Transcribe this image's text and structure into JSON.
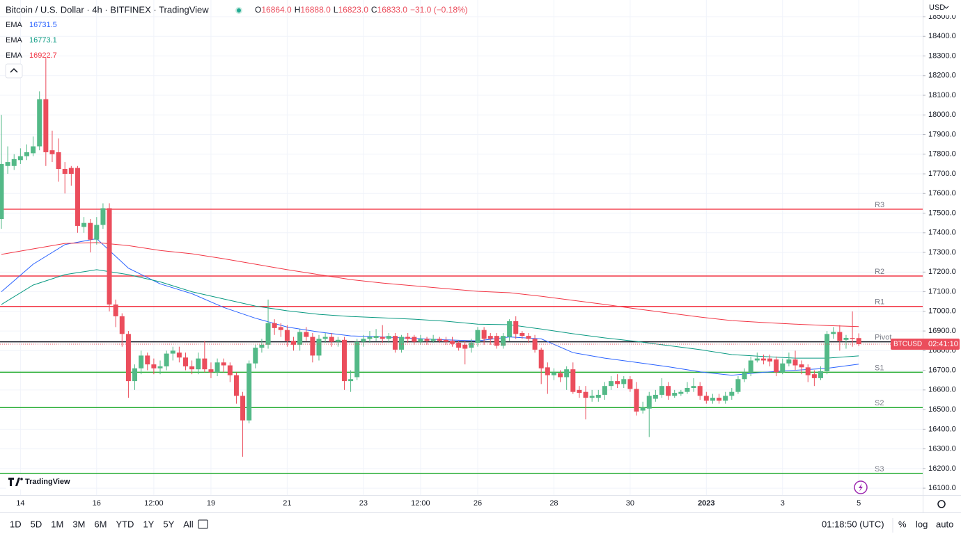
{
  "header": {
    "symbol": "Bitcoin / U.S. Dollar · 4h · BITFINEX · TradingView",
    "ohlc": [
      {
        "label": "O",
        "value": "16864.0"
      },
      {
        "label": "H",
        "value": "16888.0"
      },
      {
        "label": "L",
        "value": "16823.0"
      },
      {
        "label": "C",
        "value": "16833.0"
      }
    ],
    "change": "−31.0 (−0.18%)"
  },
  "chart_data": {
    "type": "candlestick",
    "categories": [
      null,
      null,
      null,
      "14",
      null,
      null,
      null,
      null,
      null,
      null,
      null,
      null,
      null,
      null,
      null,
      "16",
      null,
      null,
      null,
      null,
      null,
      null,
      null,
      null,
      "12:00",
      null,
      null,
      null,
      null,
      null,
      null,
      null,
      null,
      "19",
      null,
      null,
      null,
      null,
      null,
      null,
      null,
      null,
      null,
      null,
      null,
      "21",
      null,
      null,
      null,
      null,
      null,
      null,
      null,
      null,
      null,
      null,
      null,
      "23",
      null,
      null,
      null,
      null,
      null,
      null,
      null,
      null,
      "12:00",
      null,
      null,
      null,
      null,
      null,
      null,
      null,
      null,
      "26",
      null,
      null,
      null,
      null,
      null,
      null,
      null,
      null,
      null,
      null,
      null,
      "28",
      null,
      null,
      null,
      null,
      null,
      null,
      null,
      null,
      null,
      null,
      null,
      "30",
      null,
      null,
      null,
      null,
      null,
      null,
      null,
      null,
      null,
      null,
      null,
      "2023",
      null,
      null,
      null,
      null,
      null,
      null,
      null,
      null,
      null,
      null,
      null,
      "3",
      null,
      null,
      null,
      null,
      null,
      null,
      null,
      null,
      null,
      null,
      null,
      "5"
    ],
    "open": [
      17470,
      17740,
      17740,
      17770,
      17790,
      17805,
      17840,
      18080,
      17820,
      17810,
      17725,
      17730,
      17730,
      17430,
      17450,
      17365,
      17440,
      17525,
      17035,
      16975,
      16885,
      16645,
      16710,
      16775,
      16730,
      16710,
      16720,
      16785,
      16790,
      16765,
      16720,
      16705,
      16760,
      16705,
      16690,
      16740,
      16725,
      16675,
      16570,
      16445,
      16735,
      16815,
      16830,
      16940,
      16920,
      16905,
      16850,
      16830,
      16895,
      16870,
      16775,
      16860,
      16870,
      16845,
      16855,
      16645,
      16665,
      16845,
      16860,
      16865,
      16870,
      16860,
      16875,
      16805,
      16870,
      16870,
      16845,
      16860,
      16850,
      16860,
      16855,
      16850,
      16840,
      16830,
      16815,
      16840,
      16905,
      16875,
      16875,
      16825,
      16870,
      16950,
      16890,
      16875,
      16860,
      16805,
      16715,
      16675,
      16685,
      16665,
      16705,
      16600,
      16590,
      16560,
      16560,
      16575,
      16620,
      16645,
      16630,
      16655,
      16605,
      16495,
      16505,
      16555,
      16575,
      16620,
      16570,
      16580,
      16590,
      16610,
      16620,
      16570,
      16545,
      16560,
      16545,
      16570,
      16590,
      16655,
      16690,
      16750,
      16760,
      16760,
      16755,
      16690,
      16735,
      16755,
      16730,
      16715,
      16680,
      16660,
      16695,
      16885,
      16895,
      16855,
      16865,
      16864
    ],
    "high": [
      18000,
      17840,
      17800,
      17830,
      17850,
      17890,
      18120,
      18290,
      17920,
      17880,
      17760,
      17740,
      17740,
      17480,
      17470,
      17480,
      17550,
      17550,
      17060,
      16990,
      16900,
      16730,
      16800,
      16790,
      16760,
      16750,
      16800,
      16820,
      16820,
      16790,
      16750,
      16790,
      16850,
      16740,
      16760,
      16760,
      16740,
      16690,
      16590,
      16750,
      16830,
      16860,
      17060,
      16960,
      16940,
      16930,
      16870,
      16910,
      16920,
      16890,
      16880,
      16890,
      16890,
      16870,
      16870,
      16700,
      16860,
      16880,
      16900,
      16910,
      16930,
      16890,
      16890,
      16880,
      16890,
      16880,
      16880,
      16870,
      16880,
      16870,
      16870,
      16870,
      16850,
      16850,
      16860,
      16920,
      16920,
      16890,
      16890,
      16890,
      16960,
      16975,
      16900,
      16890,
      16880,
      16815,
      16740,
      16710,
      16700,
      16720,
      16740,
      16620,
      16620,
      16600,
      16600,
      16640,
      16670,
      16680,
      16670,
      16670,
      16640,
      16540,
      16590,
      16600,
      16660,
      16640,
      16600,
      16600,
      16640,
      16660,
      16640,
      16590,
      16580,
      16580,
      16590,
      16610,
      16670,
      16710,
      16770,
      16790,
      16780,
      16780,
      16770,
      16760,
      16790,
      16800,
      16750,
      16730,
      16700,
      16720,
      16900,
      16920,
      16930,
      16880,
      17000,
      16888
    ],
    "low": [
      17420,
      17700,
      17720,
      17750,
      17770,
      17790,
      17820,
      17740,
      17760,
      17660,
      17600,
      17640,
      17400,
      17400,
      17300,
      17340,
      17420,
      17000,
      16920,
      16820,
      16560,
      16600,
      16680,
      16700,
      16680,
      16680,
      16700,
      16750,
      16740,
      16700,
      16680,
      16680,
      16690,
      16660,
      16670,
      16690,
      16640,
      16530,
      16260,
      16430,
      16710,
      16790,
      16810,
      16880,
      16870,
      16820,
      16800,
      16800,
      16850,
      16740,
      16750,
      16840,
      16820,
      16820,
      16600,
      16590,
      16650,
      16820,
      16840,
      16850,
      16840,
      16840,
      16790,
      16790,
      16840,
      16830,
      16830,
      16830,
      16840,
      16840,
      16830,
      16820,
      16800,
      16730,
      16790,
      16820,
      16830,
      16830,
      16810,
      16810,
      16850,
      16860,
      16860,
      16840,
      16790,
      16630,
      16580,
      16650,
      16640,
      16600,
      16580,
      16560,
      16450,
      16540,
      16540,
      16550,
      16600,
      16610,
      16610,
      16590,
      16470,
      16480,
      16360,
      16540,
      16560,
      16550,
      16560,
      16570,
      16580,
      16590,
      16550,
      16530,
      16530,
      16530,
      16530,
      16550,
      16580,
      16640,
      16670,
      16740,
      16730,
      16720,
      16670,
      16680,
      16720,
      16700,
      16680,
      16640,
      16620,
      16650,
      16680,
      16860,
      16800,
      16810,
      16820,
      16823
    ],
    "close": [
      17750,
      17760,
      17775,
      17790,
      17810,
      17840,
      18080,
      17810,
      17800,
      17725,
      17700,
      17700,
      17435,
      17450,
      17365,
      17440,
      17525,
      17035,
      16975,
      16885,
      16645,
      16710,
      16775,
      16730,
      16710,
      16720,
      16785,
      16800,
      16765,
      16720,
      16705,
      16760,
      16705,
      16690,
      16740,
      16725,
      16675,
      16570,
      16445,
      16735,
      16815,
      16830,
      16940,
      16915,
      16905,
      16850,
      16830,
      16895,
      16870,
      16775,
      16860,
      16870,
      16845,
      16855,
      16645,
      16655,
      16845,
      16860,
      16870,
      16875,
      16860,
      16875,
      16805,
      16870,
      16860,
      16845,
      16860,
      16850,
      16860,
      16850,
      16845,
      16835,
      16815,
      16810,
      16840,
      16905,
      16860,
      16860,
      16825,
      16875,
      16950,
      16885,
      16875,
      16860,
      16805,
      16710,
      16675,
      16690,
      16665,
      16705,
      16590,
      16585,
      16560,
      16570,
      16575,
      16620,
      16645,
      16630,
      16655,
      16605,
      16490,
      16510,
      16570,
      16575,
      16620,
      16570,
      16585,
      16590,
      16610,
      16620,
      16570,
      16545,
      16560,
      16545,
      16570,
      16590,
      16655,
      16690,
      16750,
      16760,
      16750,
      16745,
      16690,
      16735,
      16755,
      16725,
      16715,
      16675,
      16660,
      16695,
      16885,
      16895,
      16850,
      16865,
      16860,
      16833
    ],
    "up_color": "#53b987",
    "down_color": "#eb4d5c",
    "ylim": [
      16065,
      18585
    ],
    "yticks": [
      {
        "value": 16100,
        "label": "16100.0"
      },
      {
        "value": 16200,
        "label": "16200.0"
      },
      {
        "value": 16300,
        "label": "16300.0"
      },
      {
        "value": 16400,
        "label": "16400.0"
      },
      {
        "value": 16500,
        "label": "16500.0"
      },
      {
        "value": 16600,
        "label": "16600.0"
      },
      {
        "value": 16700,
        "label": "16700.0"
      },
      {
        "value": 16800,
        "label": "16800.0"
      },
      {
        "value": 16900,
        "label": "16900.0"
      },
      {
        "value": 17000,
        "label": "17000.0"
      },
      {
        "value": 17100,
        "label": "17100.0"
      },
      {
        "value": 17200,
        "label": "17200.0"
      },
      {
        "value": 17300,
        "label": "17300.0"
      },
      {
        "value": 17400,
        "label": "17400.0"
      },
      {
        "value": 17500,
        "label": "17500.0"
      },
      {
        "value": 17600,
        "label": "17600.0"
      },
      {
        "value": 17700,
        "label": "17700.0"
      },
      {
        "value": 17800,
        "label": "17800.0"
      },
      {
        "value": 17900,
        "label": "17900.0"
      },
      {
        "value": 18000,
        "label": "18000.0"
      },
      {
        "value": 18100,
        "label": "18100.0"
      },
      {
        "value": 18200,
        "label": "18200.0"
      },
      {
        "value": 18300,
        "label": "18300.0"
      },
      {
        "value": 18400,
        "label": "18400.0"
      },
      {
        "value": 18500,
        "label": "18500.0"
      }
    ],
    "grid": true,
    "y_axis_label": "USD",
    "series": [
      {
        "name": "EMA",
        "color": "#2962ff",
        "x": [
          0,
          5,
          10,
          15,
          20,
          25,
          30,
          35,
          40,
          45,
          50,
          55,
          60,
          65,
          70,
          75,
          80,
          85,
          90,
          95,
          100,
          105,
          110,
          115,
          120,
          125,
          130,
          135
        ],
        "values": [
          17100,
          17240,
          17340,
          17370,
          17220,
          17140,
          17090,
          17020,
          16965,
          16920,
          16895,
          16875,
          16870,
          16862,
          16855,
          16850,
          16870,
          16860,
          16790,
          16762,
          16740,
          16718,
          16692,
          16675,
          16690,
          16700,
          16710,
          16731.5
        ]
      },
      {
        "name": "EMA",
        "color": "#089981",
        "x": [
          0,
          5,
          10,
          15,
          20,
          25,
          30,
          35,
          40,
          45,
          50,
          55,
          60,
          65,
          70,
          75,
          80,
          85,
          90,
          95,
          100,
          105,
          110,
          115,
          120,
          125,
          130,
          135
        ],
        "values": [
          17035,
          17134,
          17187,
          17212,
          17187,
          17150,
          17100,
          17063,
          17027,
          17003,
          16985,
          16974,
          16967,
          16960,
          16950,
          16935,
          16932,
          16910,
          16886,
          16865,
          16847,
          16826,
          16805,
          16780,
          16770,
          16762,
          16762,
          16773.1
        ]
      },
      {
        "name": "EMA",
        "color": "#f23645",
        "x": [
          0,
          5,
          10,
          15,
          20,
          25,
          30,
          35,
          40,
          45,
          50,
          55,
          60,
          65,
          70,
          75,
          80,
          85,
          90,
          95,
          100,
          105,
          110,
          115,
          120,
          125,
          130,
          135
        ],
        "values": [
          17290,
          17318,
          17346,
          17350,
          17335,
          17310,
          17293,
          17268,
          17240,
          17212,
          17187,
          17162,
          17144,
          17130,
          17116,
          17102,
          17095,
          17077,
          17056,
          17035,
          17013,
          16992,
          16971,
          16953,
          16943,
          16935,
          16928,
          16922.7
        ]
      }
    ],
    "levels": [
      {
        "name": "R3",
        "value": 17520,
        "color": "#f23645"
      },
      {
        "name": "R2",
        "value": 17180,
        "color": "#f23645"
      },
      {
        "name": "R1",
        "value": 17025,
        "color": "#f23645"
      },
      {
        "name": "Pivot",
        "value": 16845,
        "color": "#131722"
      },
      {
        "name": "S1",
        "value": 16690,
        "color": "#22ab2f"
      },
      {
        "name": "S2",
        "value": 16510,
        "color": "#22ab2f"
      },
      {
        "name": "S3",
        "value": 16175,
        "color": "#22ab2f"
      }
    ],
    "last_price": {
      "name": "BTCUSD",
      "countdown": "02:41:10"
    }
  },
  "toolbar": {
    "ranges": [
      "1D",
      "5D",
      "1M",
      "3M",
      "6M",
      "YTD",
      "1Y",
      "5Y",
      "All"
    ],
    "time": "01:18:50 (UTC)",
    "options": [
      "%",
      "log",
      "auto"
    ]
  },
  "watermark": "TradingView"
}
